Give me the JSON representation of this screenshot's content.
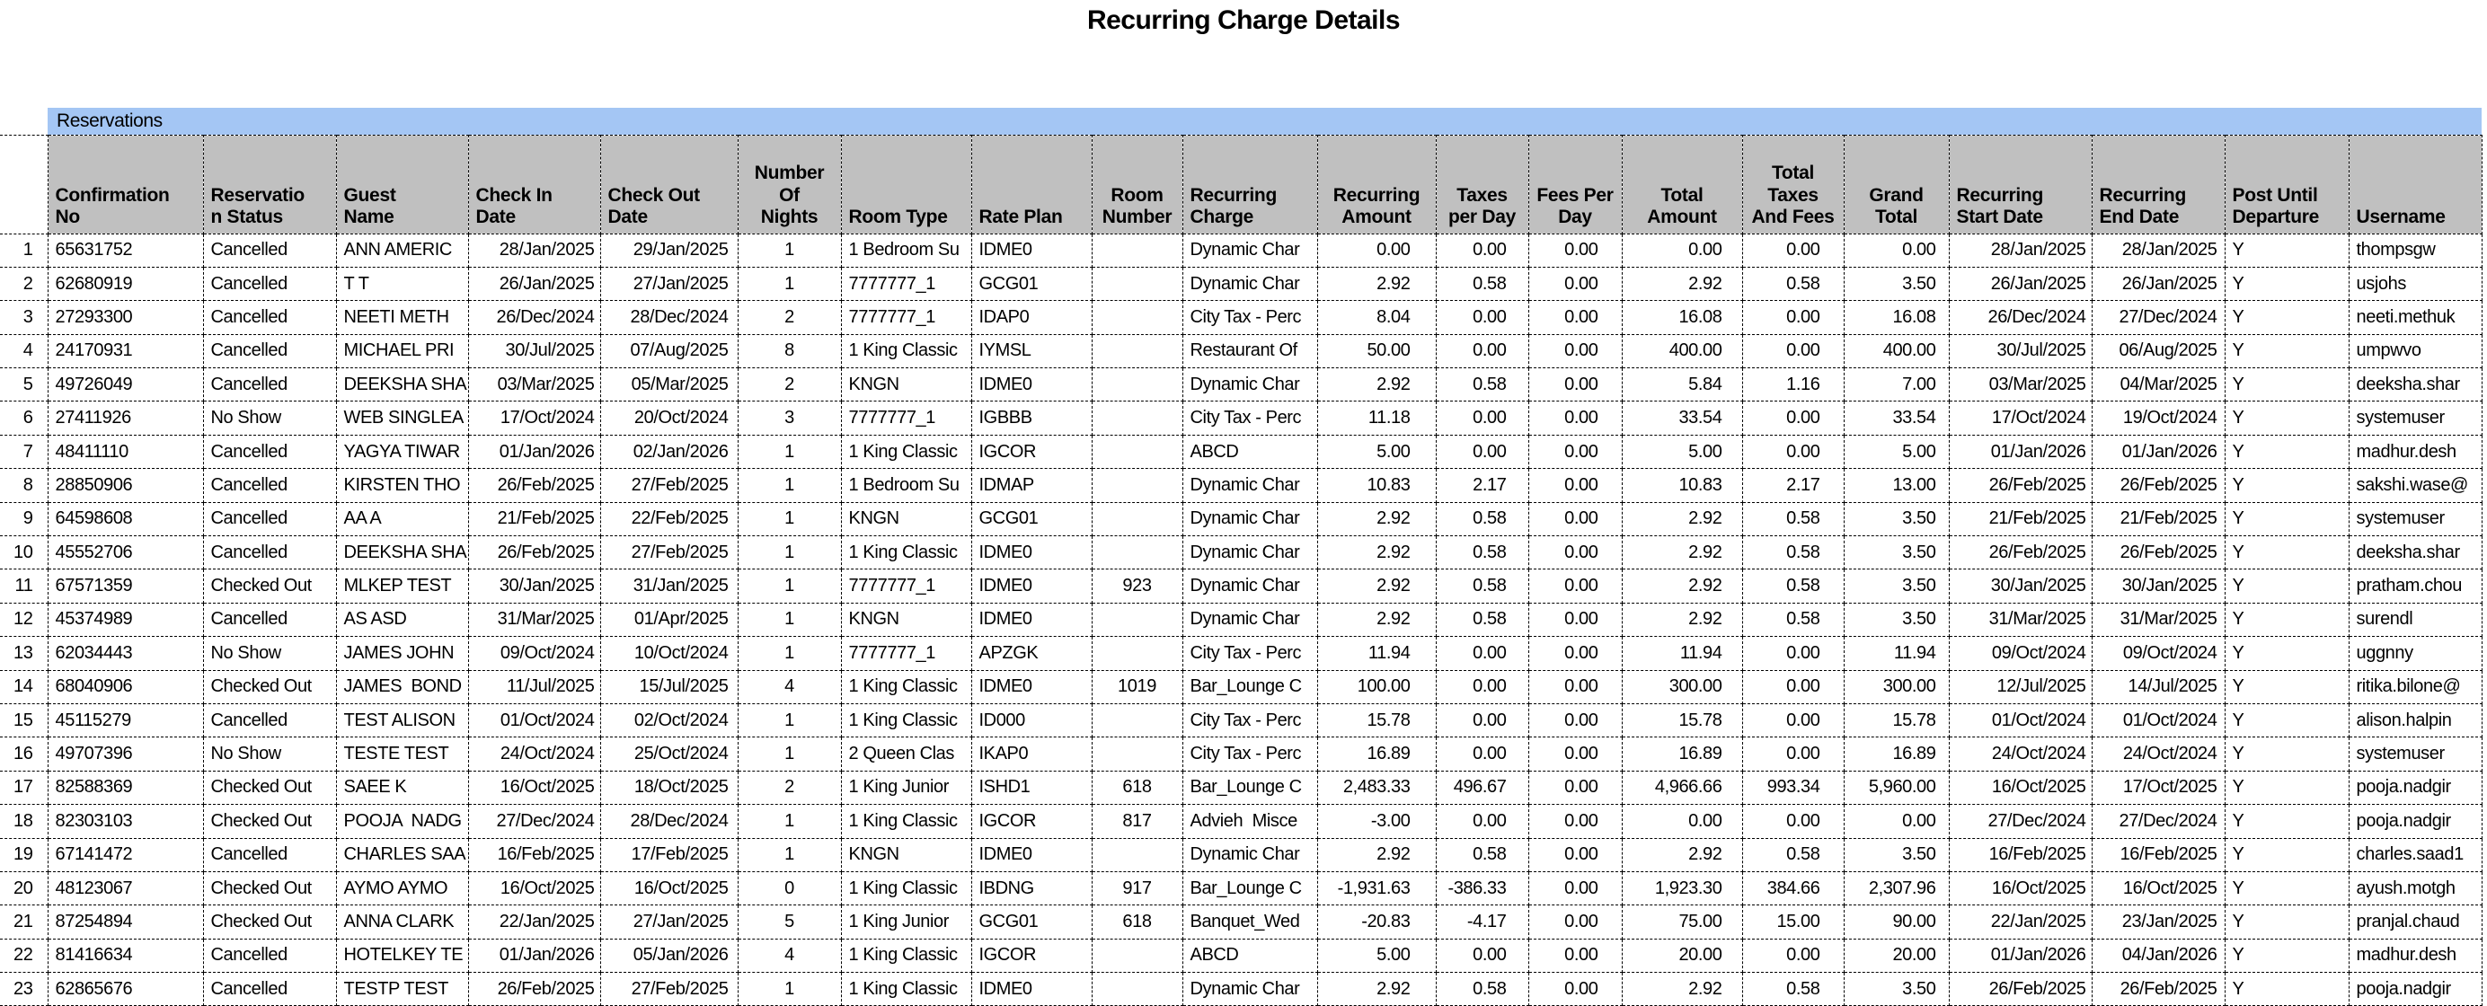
{
  "title": "Recurring Charge Details",
  "band_label": "Reservations",
  "colors": {
    "band_bg": "#a4c6f4",
    "header_bg": "#c0c0c0",
    "border": "#000000",
    "row_bg": "#ffffff"
  },
  "table": {
    "headers": [
      "",
      "Confirmation\nNo",
      "Reservatio\nn Status",
      "Guest\nName",
      "Check In\nDate",
      "Check Out\nDate",
      "Number\nOf\nNights",
      "Room Type",
      "Rate Plan",
      "Room\nNumber",
      "Recurring\nCharge",
      "Recurring\nAmount",
      "Taxes\nper Day",
      "Fees Per\nDay",
      "Total\nAmount",
      "Total\nTaxes\nAnd Fees",
      "Grand\nTotal",
      "Recurring\nStart Date",
      "Recurring\nEnd Date",
      "Post Until\nDeparture",
      "Username"
    ],
    "rows": [
      [
        "1",
        "65631752",
        "Cancelled",
        "ANN AMERIC",
        "28/Jan/2025",
        "29/Jan/2025",
        "1",
        "1 Bedroom Su",
        "IDME0",
        "",
        "Dynamic Char",
        "0.00",
        "0.00",
        "0.00",
        "0.00",
        "0.00",
        "0.00",
        "28/Jan/2025",
        "28/Jan/2025",
        "Y",
        "thompsgw"
      ],
      [
        "2",
        "62680919",
        "Cancelled",
        "T T",
        "26/Jan/2025",
        "27/Jan/2025",
        "1",
        "7777777_1",
        "GCG01",
        "",
        "Dynamic Char",
        "2.92",
        "0.58",
        "0.00",
        "2.92",
        "0.58",
        "3.50",
        "26/Jan/2025",
        "26/Jan/2025",
        "Y",
        "usjohs"
      ],
      [
        "3",
        "27293300",
        "Cancelled",
        "NEETI METH",
        "26/Dec/2024",
        "28/Dec/2024",
        "2",
        "7777777_1",
        "IDAP0",
        "",
        "City Tax - Perc",
        "8.04",
        "0.00",
        "0.00",
        "16.08",
        "0.00",
        "16.08",
        "26/Dec/2024",
        "27/Dec/2024",
        "Y",
        "neeti.methuk"
      ],
      [
        "4",
        "24170931",
        "Cancelled",
        "MICHAEL PRI",
        "30/Jul/2025",
        "07/Aug/2025",
        "8",
        "1 King Classic",
        "IYMSL",
        "",
        "Restaurant Of",
        "50.00",
        "0.00",
        "0.00",
        "400.00",
        "0.00",
        "400.00",
        "30/Jul/2025",
        "06/Aug/2025",
        "Y",
        "umpwvo"
      ],
      [
        "5",
        "49726049",
        "Cancelled",
        "DEEKSHA SHA",
        "03/Mar/2025",
        "05/Mar/2025",
        "2",
        "KNGN",
        "IDME0",
        "",
        "Dynamic Char",
        "2.92",
        "0.58",
        "0.00",
        "5.84",
        "1.16",
        "7.00",
        "03/Mar/2025",
        "04/Mar/2025",
        "Y",
        "deeksha.shar"
      ],
      [
        "6",
        "27411926",
        "No Show",
        "WEB SINGLEA",
        "17/Oct/2024",
        "20/Oct/2024",
        "3",
        "7777777_1",
        "IGBBB",
        "",
        "City Tax - Perc",
        "11.18",
        "0.00",
        "0.00",
        "33.54",
        "0.00",
        "33.54",
        "17/Oct/2024",
        "19/Oct/2024",
        "Y",
        "systemuser"
      ],
      [
        "7",
        "48411110",
        "Cancelled",
        "YAGYA TIWAR",
        "01/Jan/2026",
        "02/Jan/2026",
        "1",
        "1 King Classic",
        "IGCOR",
        "",
        "ABCD",
        "5.00",
        "0.00",
        "0.00",
        "5.00",
        "0.00",
        "5.00",
        "01/Jan/2026",
        "01/Jan/2026",
        "Y",
        "madhur.desh"
      ],
      [
        "8",
        "28850906",
        "Cancelled",
        "KIRSTEN THO",
        "26/Feb/2025",
        "27/Feb/2025",
        "1",
        "1 Bedroom Su",
        "IDMAP",
        "",
        "Dynamic Char",
        "10.83",
        "2.17",
        "0.00",
        "10.83",
        "2.17",
        "13.00",
        "26/Feb/2025",
        "26/Feb/2025",
        "Y",
        "sakshi.wase@"
      ],
      [
        "9",
        "64598608",
        "Cancelled",
        "AA A",
        "21/Feb/2025",
        "22/Feb/2025",
        "1",
        "KNGN",
        "GCG01",
        "",
        "Dynamic Char",
        "2.92",
        "0.58",
        "0.00",
        "2.92",
        "0.58",
        "3.50",
        "21/Feb/2025",
        "21/Feb/2025",
        "Y",
        "systemuser"
      ],
      [
        "10",
        "45552706",
        "Cancelled",
        "DEEKSHA SHA",
        "26/Feb/2025",
        "27/Feb/2025",
        "1",
        "1 King Classic",
        "IDME0",
        "",
        "Dynamic Char",
        "2.92",
        "0.58",
        "0.00",
        "2.92",
        "0.58",
        "3.50",
        "26/Feb/2025",
        "26/Feb/2025",
        "Y",
        "deeksha.shar"
      ],
      [
        "11",
        "67571359",
        "Checked Out",
        "MLKEP TEST",
        "30/Jan/2025",
        "31/Jan/2025",
        "1",
        "7777777_1",
        "IDME0",
        "923",
        "Dynamic Char",
        "2.92",
        "0.58",
        "0.00",
        "2.92",
        "0.58",
        "3.50",
        "30/Jan/2025",
        "30/Jan/2025",
        "Y",
        "pratham.chou"
      ],
      [
        "12",
        "45374989",
        "Cancelled",
        "AS ASD",
        "31/Mar/2025",
        "01/Apr/2025",
        "1",
        "KNGN",
        "IDME0",
        "",
        "Dynamic Char",
        "2.92",
        "0.58",
        "0.00",
        "2.92",
        "0.58",
        "3.50",
        "31/Mar/2025",
        "31/Mar/2025",
        "Y",
        "surendl"
      ],
      [
        "13",
        "62034443",
        "No Show",
        "JAMES JOHN",
        "09/Oct/2024",
        "10/Oct/2024",
        "1",
        "7777777_1",
        "APZGK",
        "",
        "City Tax - Perc",
        "11.94",
        "0.00",
        "0.00",
        "11.94",
        "0.00",
        "11.94",
        "09/Oct/2024",
        "09/Oct/2024",
        "Y",
        "uggnny"
      ],
      [
        "14",
        "68040906",
        "Checked Out",
        "JAMES  BOND",
        "11/Jul/2025",
        "15/Jul/2025",
        "4",
        "1 King Classic",
        "IDME0",
        "1019",
        "Bar_Lounge C",
        "100.00",
        "0.00",
        "0.00",
        "300.00",
        "0.00",
        "300.00",
        "12/Jul/2025",
        "14/Jul/2025",
        "Y",
        "ritika.bilone@"
      ],
      [
        "15",
        "45115279",
        "Cancelled",
        "TEST ALISON",
        "01/Oct/2024",
        "02/Oct/2024",
        "1",
        "1 King Classic",
        "ID000",
        "",
        "City Tax - Perc",
        "15.78",
        "0.00",
        "0.00",
        "15.78",
        "0.00",
        "15.78",
        "01/Oct/2024",
        "01/Oct/2024",
        "Y",
        "alison.halpin"
      ],
      [
        "16",
        "49707396",
        "No Show",
        "TESTE TEST",
        "24/Oct/2024",
        "25/Oct/2024",
        "1",
        "2 Queen Clas",
        "IKAP0",
        "",
        "City Tax - Perc",
        "16.89",
        "0.00",
        "0.00",
        "16.89",
        "0.00",
        "16.89",
        "24/Oct/2024",
        "24/Oct/2024",
        "Y",
        "systemuser"
      ],
      [
        "17",
        "82588369",
        "Checked Out",
        "SAEE K",
        "16/Oct/2025",
        "18/Oct/2025",
        "2",
        "1 King Junior",
        "ISHD1",
        "618",
        "Bar_Lounge C",
        "2,483.33",
        "496.67",
        "0.00",
        "4,966.66",
        "993.34",
        "5,960.00",
        "16/Oct/2025",
        "17/Oct/2025",
        "Y",
        "pooja.nadgir"
      ],
      [
        "18",
        "82303103",
        "Checked Out",
        "POOJA  NADG",
        "27/Dec/2024",
        "28/Dec/2024",
        "1",
        "1 King Classic",
        "IGCOR",
        "817",
        "Advieh  Misce",
        "-3.00",
        "0.00",
        "0.00",
        "0.00",
        "0.00",
        "0.00",
        "27/Dec/2024",
        "27/Dec/2024",
        "Y",
        "pooja.nadgir"
      ],
      [
        "19",
        "67141472",
        "Cancelled",
        "CHARLES SAA",
        "16/Feb/2025",
        "17/Feb/2025",
        "1",
        "KNGN",
        "IDME0",
        "",
        "Dynamic Char",
        "2.92",
        "0.58",
        "0.00",
        "2.92",
        "0.58",
        "3.50",
        "16/Feb/2025",
        "16/Feb/2025",
        "Y",
        "charles.saad1"
      ],
      [
        "20",
        "48123067",
        "Checked Out",
        "AYMO AYMO",
        "16/Oct/2025",
        "16/Oct/2025",
        "0",
        "1 King Classic",
        "IBDNG",
        "917",
        "Bar_Lounge C",
        "-1,931.63",
        "-386.33",
        "0.00",
        "1,923.30",
        "384.66",
        "2,307.96",
        "16/Oct/2025",
        "16/Oct/2025",
        "Y",
        "ayush.motgh"
      ],
      [
        "21",
        "87254894",
        "Checked Out",
        "ANNA CLARK",
        "22/Jan/2025",
        "27/Jan/2025",
        "5",
        "1 King Junior",
        "GCG01",
        "618",
        "Banquet_Wed",
        "-20.83",
        "-4.17",
        "0.00",
        "75.00",
        "15.00",
        "90.00",
        "22/Jan/2025",
        "23/Jan/2025",
        "Y",
        "pranjal.chaud"
      ],
      [
        "22",
        "81416634",
        "Cancelled",
        "HOTELKEY TE",
        "01/Jan/2026",
        "05/Jan/2026",
        "4",
        "1 King Classic",
        "IGCOR",
        "",
        "ABCD",
        "5.00",
        "0.00",
        "0.00",
        "20.00",
        "0.00",
        "20.00",
        "01/Jan/2026",
        "04/Jan/2026",
        "Y",
        "madhur.desh"
      ],
      [
        "23",
        "62865676",
        "Cancelled",
        "TESTP TEST",
        "26/Feb/2025",
        "27/Feb/2025",
        "1",
        "1 King Classic",
        "IDME0",
        "",
        "Dynamic Char",
        "2.92",
        "0.58",
        "0.00",
        "2.92",
        "0.58",
        "3.50",
        "26/Feb/2025",
        "26/Feb/2025",
        "Y",
        "pooja.nadgir"
      ]
    ]
  }
}
